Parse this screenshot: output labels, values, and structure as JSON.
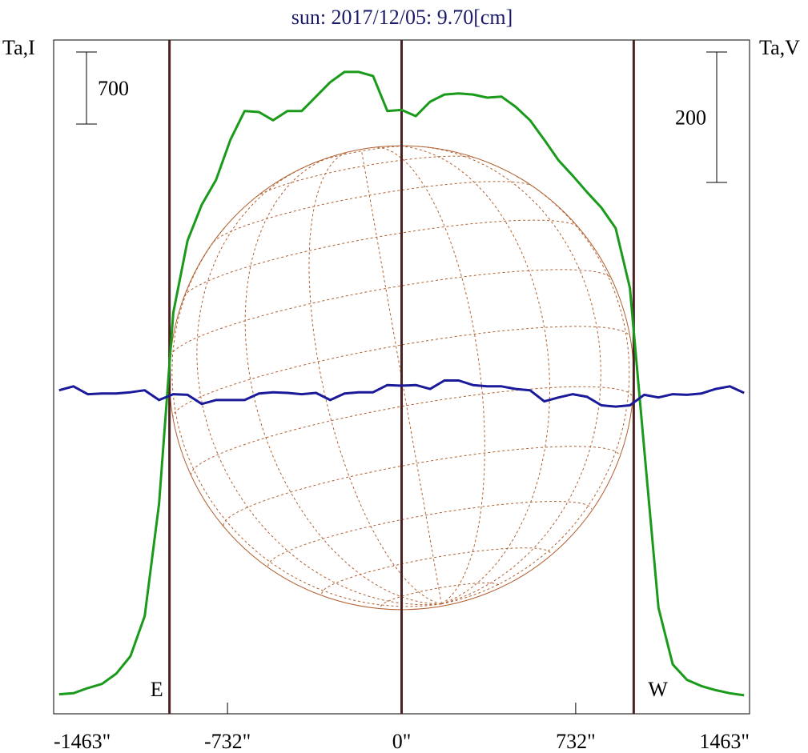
{
  "chart_data": {
    "type": "line",
    "title": "sun: 2017/12/05: 9.70[cm]",
    "x": [
      -1440,
      -1380,
      -1320,
      -1260,
      -1200,
      -1140,
      -1080,
      -1020,
      -960,
      -900,
      -840,
      -780,
      -720,
      -660,
      -600,
      -540,
      -480,
      -420,
      -360,
      -300,
      -240,
      -180,
      -120,
      -60,
      0,
      60,
      120,
      180,
      240,
      300,
      360,
      420,
      480,
      540,
      600,
      660,
      720,
      780,
      840,
      900,
      960,
      1020,
      1080,
      1140,
      1200,
      1260,
      1320,
      1380,
      1440
    ],
    "series": [
      {
        "name": "Ta,I",
        "color": "#1a9a1a",
        "axis": "y",
        "values": [
          190,
          200,
          250,
          290,
          390,
          560,
          950,
          2040,
          3900,
          4600,
          4950,
          5190,
          5580,
          5860,
          5850,
          5770,
          5860,
          5860,
          6000,
          6140,
          6240,
          6240,
          6200,
          5860,
          5870,
          5810,
          5950,
          6020,
          6030,
          6020,
          5990,
          6000,
          5900,
          5770,
          5580,
          5380,
          5230,
          5070,
          4920,
          4720,
          4140,
          2580,
          1030,
          480,
          330,
          270,
          230,
          200,
          180
        ]
      },
      {
        "name": "Ta,V",
        "color": "#1a1a9a",
        "axis": "y2",
        "values": [
          5,
          11,
          -1,
          0,
          0,
          2,
          5,
          -10,
          -1,
          -2,
          -16,
          -10,
          -10,
          -10,
          0,
          2,
          1,
          -1,
          1,
          -10,
          0,
          2,
          2,
          13,
          12,
          13,
          7,
          20,
          20,
          13,
          11,
          11,
          7,
          5,
          -12,
          -6,
          -1,
          -5,
          -18,
          -20,
          -18,
          -2,
          -6,
          -1,
          -2,
          0,
          7,
          11,
          1
        ]
      }
    ],
    "xlim": [
      -1463,
      1463
    ],
    "xticks": [
      {
        "value": -1463,
        "label": "-1463\""
      },
      {
        "value": -732,
        "label": "-732\""
      },
      {
        "value": 0,
        "label": "0\""
      },
      {
        "value": 732,
        "label": "732\""
      },
      {
        "value": 1463,
        "label": "1463\""
      }
    ],
    "ylim": [
      0,
      6550
    ],
    "y2lim": [
      -491,
      542
    ],
    "limbs": [
      {
        "value": -976,
        "label": "E"
      },
      {
        "value": 976,
        "label": "W"
      }
    ],
    "scale_bars": [
      {
        "value": 700,
        "axis": "y"
      },
      {
        "value": 200,
        "axis": "y2"
      }
    ]
  }
}
